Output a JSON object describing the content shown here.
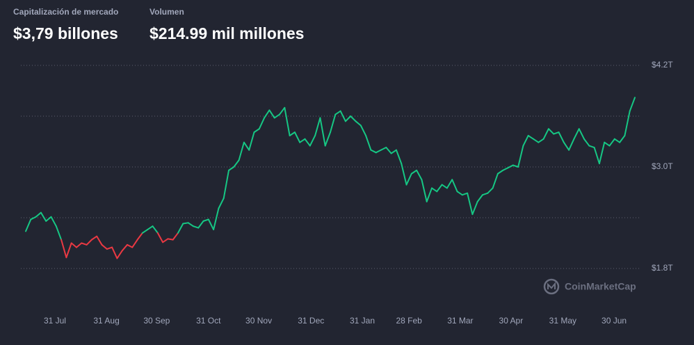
{
  "header": {
    "stats": [
      {
        "label": "Capitalización de mercado",
        "value": "$3,79 billones"
      },
      {
        "label": "Volumen",
        "value": "$214.99 mil millones"
      }
    ]
  },
  "watermark": "CoinMarketCap",
  "chart_data": {
    "type": "line",
    "series": [
      {
        "color": "#16c784",
        "negative_color": "#ea3943",
        "values": [
          2.24,
          2.38,
          2.41,
          2.46,
          2.36,
          2.41,
          2.3,
          2.14,
          1.93,
          2.1,
          2.05,
          2.1,
          2.08,
          2.14,
          2.18,
          2.08,
          2.03,
          2.05,
          1.92,
          2.01,
          2.08,
          2.05,
          2.14,
          2.22,
          2.26,
          2.3,
          2.22,
          2.11,
          2.15,
          2.14,
          2.22,
          2.33,
          2.34,
          2.3,
          2.28,
          2.36,
          2.38,
          2.26,
          2.51,
          2.63,
          2.96,
          3.0,
          3.08,
          3.29,
          3.2,
          3.41,
          3.45,
          3.58,
          3.67,
          3.58,
          3.62,
          3.7,
          3.37,
          3.41,
          3.29,
          3.33,
          3.25,
          3.37,
          3.58,
          3.25,
          3.41,
          3.62,
          3.66,
          3.54,
          3.6,
          3.54,
          3.49,
          3.37,
          3.2,
          3.17,
          3.2,
          3.23,
          3.16,
          3.2,
          3.04,
          2.79,
          2.92,
          2.96,
          2.85,
          2.59,
          2.75,
          2.71,
          2.79,
          2.75,
          2.85,
          2.71,
          2.67,
          2.69,
          2.44,
          2.59,
          2.67,
          2.69,
          2.75,
          2.92,
          2.96,
          2.99,
          3.02,
          3.0,
          3.25,
          3.37,
          3.33,
          3.29,
          3.33,
          3.45,
          3.39,
          3.41,
          3.29,
          3.2,
          3.33,
          3.45,
          3.33,
          3.25,
          3.23,
          3.04,
          3.29,
          3.25,
          3.33,
          3.29,
          3.37,
          3.66,
          3.82
        ]
      }
    ],
    "xlim": [
      0,
      120
    ],
    "xticks": [
      {
        "value": 5.75,
        "label": "31 Jul"
      },
      {
        "value": 15.9,
        "label": "31 Aug"
      },
      {
        "value": 25.8,
        "label": "30 Sep"
      },
      {
        "value": 36.0,
        "label": "31 Oct"
      },
      {
        "value": 45.9,
        "label": "30 Nov"
      },
      {
        "value": 56.2,
        "label": "31 Dec"
      },
      {
        "value": 66.3,
        "label": "31 Jan"
      },
      {
        "value": 75.5,
        "label": "28 Feb"
      },
      {
        "value": 85.6,
        "label": "31 Mar"
      },
      {
        "value": 95.6,
        "label": "30 Apr"
      },
      {
        "value": 105.8,
        "label": "31 May"
      },
      {
        "value": 115.9,
        "label": "30 Jun"
      }
    ],
    "ylim": [
      1.8,
      4.2
    ],
    "yticks": [
      {
        "value": 4.2,
        "label": "$4.2T"
      },
      {
        "value": 3.0,
        "label": "$3.0T"
      },
      {
        "value": 1.8,
        "label": "$1.8T"
      }
    ],
    "ygrid": [
      4.2,
      3.6,
      3.0,
      2.4,
      1.8
    ],
    "grid": true
  }
}
